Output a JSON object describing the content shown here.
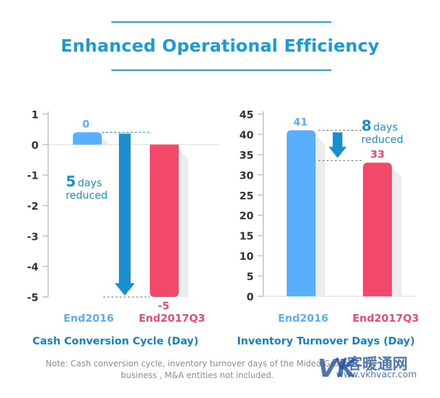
{
  "page_title": "Enhanced Operational Efficiency",
  "note": "Note: Cash conversion cycle, inventory turnover days of the Midea Group business , M&A entities not included.",
  "watermark": {
    "mark": "VK",
    "cn": "V客暖通网",
    "url": "www.vkhvacr.com"
  },
  "colors": {
    "accent": "#1a9ad6",
    "bar_2016": "#5aaeff",
    "bar_2017": "#f2486a",
    "arrow": "#1a8fd0"
  },
  "chart_data": [
    {
      "type": "bar",
      "title": "Cash Conversion Cycle (Day)",
      "categories": [
        "End2016",
        "End2017Q3"
      ],
      "values": [
        0,
        -5
      ],
      "data_labels": [
        "0",
        "-5"
      ],
      "y_ticks": [
        "1",
        "0",
        "-1",
        "-2",
        "-3",
        "-4",
        "-5"
      ],
      "ylim": [
        -5,
        1
      ],
      "annotation": {
        "number": "5",
        "unit": "days",
        "text": "reduced"
      }
    },
    {
      "type": "bar",
      "title": "Inventory Turnover Days (Day)",
      "categories": [
        "End2016",
        "End2017Q3"
      ],
      "values": [
        41,
        33
      ],
      "data_labels": [
        "41",
        "33"
      ],
      "y_ticks": [
        "45",
        "40",
        "35",
        "30",
        "25",
        "20",
        "15",
        "10",
        "5",
        "0"
      ],
      "ylim": [
        0,
        45
      ],
      "annotation": {
        "number": "8",
        "unit": "days",
        "text": "reduced"
      }
    }
  ]
}
